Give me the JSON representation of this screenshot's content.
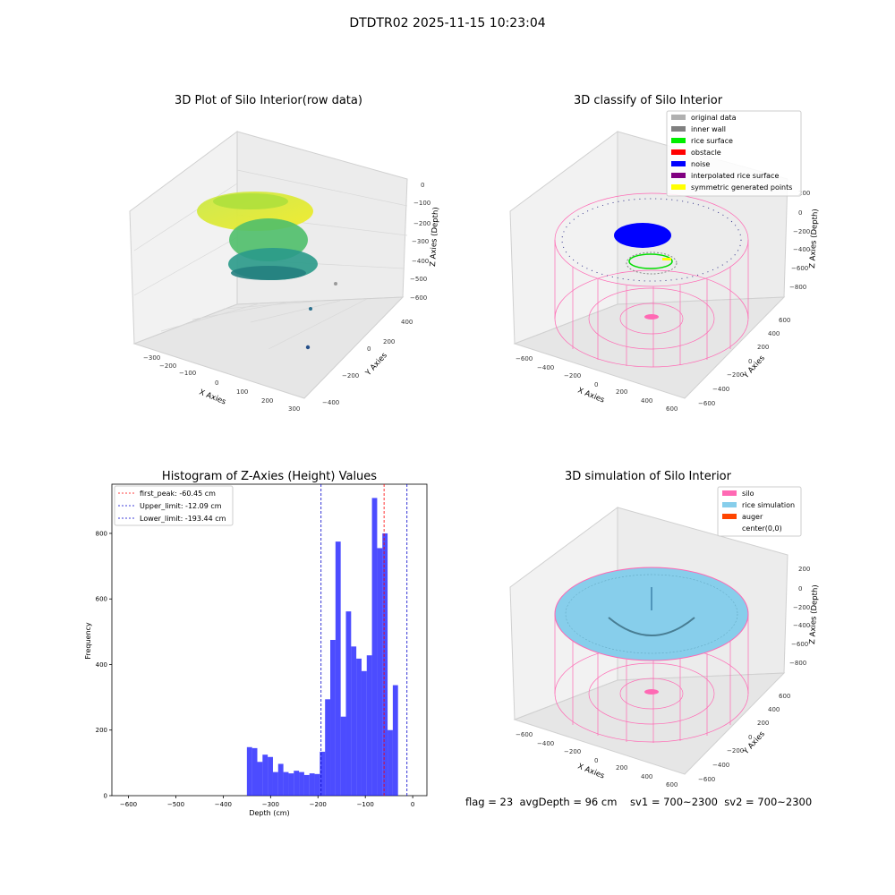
{
  "suptitle": "DTDTR02 2025-11-15 10:23:04",
  "footer": "flag = 23  avgDepth = 96 cm    sv1 = 700~2300  sv2 = 700~2300",
  "panels": {
    "raw": {
      "title": "3D Plot of Silo Interior(row data)",
      "xlabel": "X Axies",
      "ylabel": "Y Axies",
      "zlabel": "Z Axies (Depth)",
      "xticks": [
        "−300",
        "−200",
        "−100",
        "0",
        "100",
        "200",
        "300"
      ],
      "yticks": [
        "−400",
        "−200",
        "0",
        "200",
        "400"
      ],
      "zticks": [
        "0",
        "−100",
        "−200",
        "−300",
        "−400",
        "−500",
        "−600"
      ]
    },
    "classify": {
      "title": "3D classify of Silo Interior",
      "xlabel": "X Axies",
      "ylabel": "Y Axies",
      "zlabel": "Z Axies (Depth)",
      "xticks": [
        "−600",
        "−400",
        "−200",
        "0",
        "200",
        "400",
        "600"
      ],
      "yticks": [
        "−600",
        "−400",
        "−200",
        "0",
        "200",
        "400",
        "600"
      ],
      "zticks": [
        "200",
        "0",
        "−200",
        "−400",
        "−600",
        "−800"
      ],
      "legend": [
        {
          "label": "original data",
          "color": "#b0b0b0"
        },
        {
          "label": "inner wall",
          "color": "#808080"
        },
        {
          "label": "rice surface",
          "color": "#00ee00"
        },
        {
          "label": "obstacle",
          "color": "#ff0000"
        },
        {
          "label": "noise",
          "color": "#0000ff"
        },
        {
          "label": "interpolated rice surface",
          "color": "#800080"
        },
        {
          "label": "symmetric generated points",
          "color": "#ffff00"
        }
      ]
    },
    "simulation": {
      "title": "3D simulation of Silo Interior",
      "xlabel": "X Axies",
      "ylabel": "Y Axies",
      "zlabel": "Z Axies (Depth)",
      "xticks": [
        "−600",
        "−400",
        "−200",
        "0",
        "200",
        "400",
        "600"
      ],
      "yticks": [
        "−600",
        "−400",
        "−200",
        "0",
        "200",
        "400",
        "600"
      ],
      "zticks": [
        "200",
        "0",
        "−200",
        "−400",
        "−600",
        "−800"
      ],
      "legend": [
        {
          "label": "silo",
          "color": "#ff69b4"
        },
        {
          "label": "rice simulation",
          "color": "#87ceeb"
        },
        {
          "label": "auger",
          "color": "#ff4500"
        },
        {
          "label": "center(0,0)",
          "color": ""
        }
      ]
    }
  },
  "chart_data": [
    {
      "type": "bar",
      "title": "Histogram of Z-Axies (Height) Values",
      "xlabel": "Depth (cm)",
      "ylabel": "Frequency",
      "xlim": [
        -635,
        30
      ],
      "ylim": [
        0,
        950
      ],
      "xticks": [
        -600,
        -500,
        -400,
        -300,
        -200,
        -100,
        0
      ],
      "xtick_labels": [
        "−600",
        "−500",
        "−400",
        "−300",
        "−200",
        "−100",
        "0"
      ],
      "yticks": [
        0,
        200,
        400,
        600,
        800
      ],
      "yticks_labels": [
        "0",
        "200",
        "400",
        "600",
        "800"
      ],
      "bar_color": "#0000ff",
      "bin_width": 11,
      "bin_left": [
        -350,
        -339,
        -328,
        -317,
        -306,
        -295,
        -284,
        -273,
        -262,
        -251,
        -240,
        -229,
        -218,
        -207,
        -196,
        -185,
        -174,
        -163,
        -152,
        -141,
        -130,
        -119,
        -108,
        -97,
        -86,
        -75,
        -64,
        -53,
        -42,
        -31,
        -20,
        -9
      ],
      "values": [
        148,
        145,
        103,
        125,
        118,
        72,
        97,
        72,
        68,
        76,
        72,
        63,
        68,
        66,
        134,
        294,
        475,
        775,
        241,
        562,
        455,
        418,
        380,
        428,
        908,
        755,
        800,
        200,
        337,
        0,
        0,
        0
      ],
      "vlines": [
        {
          "label": "first_peak: -60.45 cm",
          "x": -60.45,
          "color": "#ff0000"
        },
        {
          "label": "Upper_limit: -12.09 cm",
          "x": -12.09,
          "color": "#0000cc"
        },
        {
          "label": "Lower_limit: -193.44 cm",
          "x": -193.44,
          "color": "#0000cc"
        }
      ]
    }
  ]
}
